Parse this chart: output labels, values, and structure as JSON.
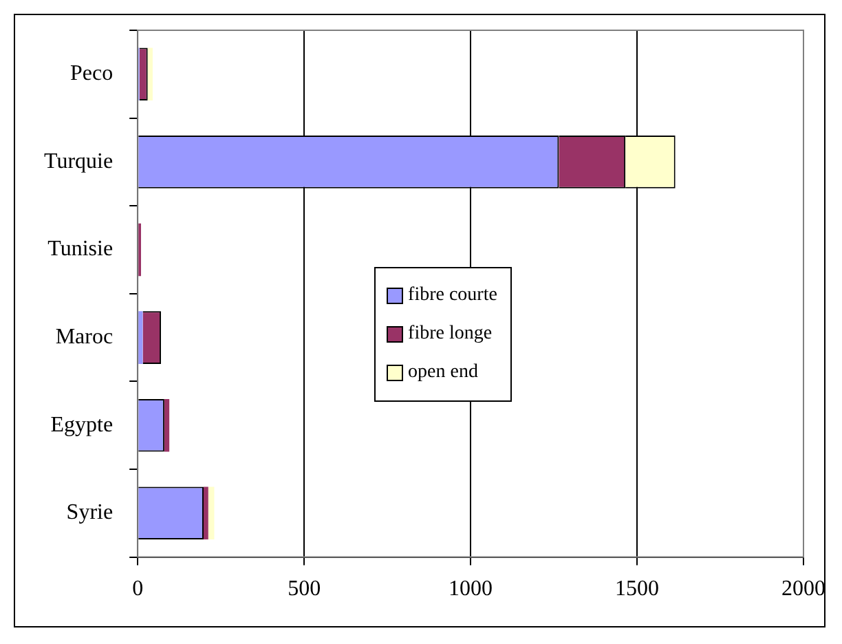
{
  "chart_data": {
    "type": "bar",
    "orientation": "horizontal",
    "stacked": true,
    "categories": [
      "Peco",
      "Turquie",
      "Tunisie",
      "Maroc",
      "Egypte",
      "Syrie"
    ],
    "series": [
      {
        "name": "fibre courte",
        "color": "#9999ff",
        "values": [
          5,
          1265,
          null,
          15,
          80,
          198
        ]
      },
      {
        "name": "fibre longe",
        "color": "#993366",
        "values": [
          25,
          200,
          10,
          55,
          15,
          14
        ]
      },
      {
        "name": "open end",
        "color": "#ffffcc",
        "values": [
          15,
          150,
          null,
          0,
          null,
          18
        ]
      }
    ],
    "xlim": [
      0,
      2000
    ],
    "xticks": [
      0,
      500,
      1000,
      1500,
      2000
    ],
    "grid": "x",
    "legend": "center"
  }
}
